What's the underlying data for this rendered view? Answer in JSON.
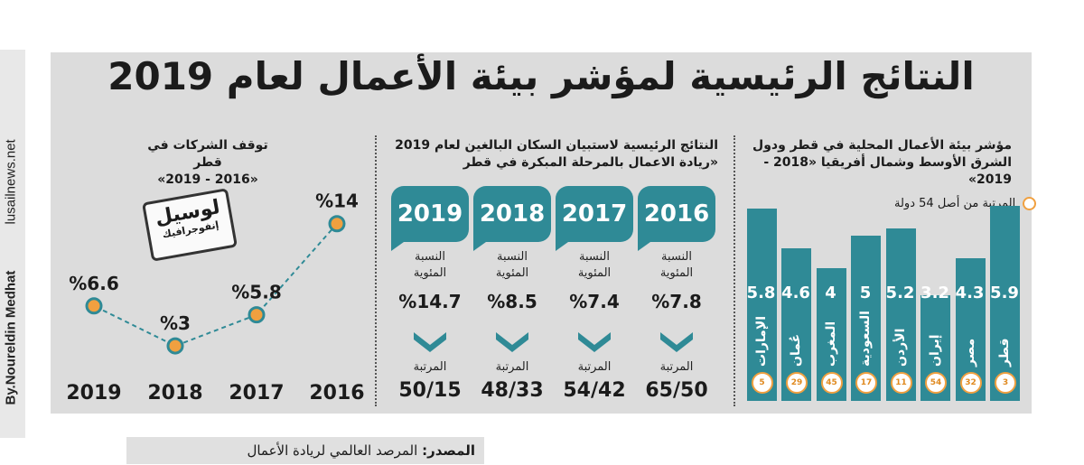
{
  "title": "النتائج الرئيسية لمؤشر بيئة الأعمال لعام 2019",
  "sidebar": {
    "site": "lusailnews.net",
    "author": "By.Noureldin Medhat"
  },
  "source": {
    "label": "المصدر:",
    "text": "المرصد العالمي لريادة الأعمال"
  },
  "stamp": {
    "line1": "لوسيل",
    "line2": "إنفوجرافيك"
  },
  "right_section": {
    "title_line1": "مؤشر بيئة الأعمال المحلية في قطر ودول",
    "title_line2": "الشرق الأوسط وشمال أفريقيا «2018 - 2019»",
    "legend": "المرتبة من أصل 54 دولة"
  },
  "middle_section": {
    "title_line1": "النتائج الرئيسية لاستبيان السكان البالغين لعام 2019",
    "title_line2": "«ريادة الاعمال بالمرحلة المبكرة في قطر",
    "pct_label": "النسبة المئوية",
    "rank_label": "المرتبة",
    "years": [
      "2016",
      "2017",
      "2018",
      "2019"
    ],
    "pcts": [
      "%7.8",
      "%7.4",
      "%8.5",
      "%14.7"
    ],
    "ranks": [
      "65/50",
      "54/42",
      "48/33",
      "50/15"
    ]
  },
  "left_section": {
    "title_line1": "توقف الشركات في قطر",
    "title_line2": "«2016 - 2019»"
  },
  "chart_data": [
    {
      "type": "bar",
      "categories": [
        "قطر",
        "مصر",
        "إيران",
        "الأردن",
        "السعودية",
        "المغرب",
        "عُمان",
        "الإمارات"
      ],
      "values": [
        5.9,
        4.3,
        3.2,
        5.2,
        5.0,
        4.0,
        4.6,
        5.8
      ],
      "value_labels": [
        "5.9",
        "4.3",
        "3.2",
        "5.2",
        "5",
        "4",
        "4.6",
        "5.8"
      ],
      "ranks": [
        "3",
        "32",
        "54",
        "11",
        "17",
        "45",
        "29",
        "5"
      ],
      "ylim": [
        0,
        6
      ]
    },
    {
      "type": "line",
      "x": [
        "2016",
        "2017",
        "2018",
        "2019"
      ],
      "values": [
        14,
        5.8,
        3,
        6.6
      ],
      "value_labels": [
        "%14",
        "%5.8",
        "%3",
        "%6.6"
      ],
      "ylim": [
        0,
        16
      ]
    }
  ]
}
